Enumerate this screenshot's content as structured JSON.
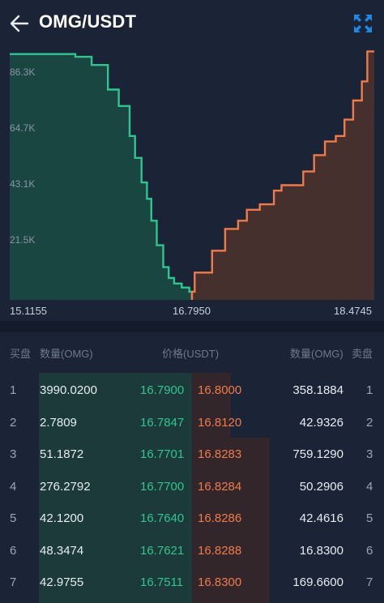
{
  "header": {
    "title": "OMG/USDT",
    "back_icon": "arrow-left-icon",
    "expand_icon": "fullscreen-expand-icon"
  },
  "colors": {
    "bid": "#2fc58e",
    "ask": "#ef7a4a",
    "background": "#1b2436",
    "expand_icon": "#1e88e5"
  },
  "chart_data": {
    "type": "area",
    "y_ticks": [
      "86.3K",
      "64.7K",
      "43.1K",
      "21.5K"
    ],
    "x_ticks": [
      "15.1155",
      "16.7950",
      "18.4745"
    ],
    "bids": {
      "name": "bids",
      "x": [
        15.1155,
        15.72,
        15.87,
        16.02,
        16.12,
        16.22,
        16.27,
        16.33,
        16.38,
        16.42,
        16.47,
        16.53,
        16.58,
        16.63,
        16.7,
        16.77,
        16.795
      ],
      "y": [
        90000,
        89000,
        86000,
        77000,
        71000,
        60000,
        52000,
        43000,
        37000,
        29000,
        20000,
        12000,
        8000,
        6000,
        4500,
        3000,
        0
      ]
    },
    "asks": {
      "name": "asks",
      "x": [
        16.795,
        16.82,
        16.98,
        17.1,
        17.22,
        17.3,
        17.42,
        17.55,
        17.62,
        17.82,
        17.92,
        18.02,
        18.12,
        18.2,
        18.28,
        18.36,
        18.41,
        18.4745
      ],
      "y": [
        0,
        3000,
        10000,
        18000,
        26000,
        29000,
        33000,
        35000,
        40000,
        42000,
        47000,
        53000,
        58000,
        60000,
        66000,
        73000,
        80000,
        91000
      ]
    },
    "ylim": [
      0,
      92000
    ],
    "xlim": [
      15.1155,
      18.4745
    ]
  },
  "book": {
    "headers": {
      "buy": "买盘",
      "buy_qty": "数量(OMG)",
      "price": "价格(USDT)",
      "sell_qty": "数量(OMG)",
      "sell": "卖盘"
    },
    "rows": [
      {
        "idx": "1",
        "bid_qty": "3990.0200",
        "bid_price": "16.7900",
        "ask_price": "16.8000",
        "ask_qty": "358.1884",
        "ask_idx": "1"
      },
      {
        "idx": "2",
        "bid_qty": "2.7809",
        "bid_price": "16.7847",
        "ask_price": "16.8120",
        "ask_qty": "42.9326",
        "ask_idx": "2"
      },
      {
        "idx": "3",
        "bid_qty": "51.1872",
        "bid_price": "16.7701",
        "ask_price": "16.8283",
        "ask_qty": "759.1290",
        "ask_idx": "3"
      },
      {
        "idx": "4",
        "bid_qty": "276.2792",
        "bid_price": "16.7700",
        "ask_price": "16.8284",
        "ask_qty": "50.2906",
        "ask_idx": "4"
      },
      {
        "idx": "5",
        "bid_qty": "42.1200",
        "bid_price": "16.7640",
        "ask_price": "16.8286",
        "ask_qty": "42.4616",
        "ask_idx": "5"
      },
      {
        "idx": "6",
        "bid_qty": "48.3474",
        "bid_price": "16.7621",
        "ask_price": "16.8288",
        "ask_qty": "16.8300",
        "ask_idx": "6"
      },
      {
        "idx": "7",
        "bid_qty": "42.9755",
        "bid_price": "16.7511",
        "ask_price": "16.8300",
        "ask_qty": "169.6600",
        "ask_idx": "7"
      }
    ]
  }
}
